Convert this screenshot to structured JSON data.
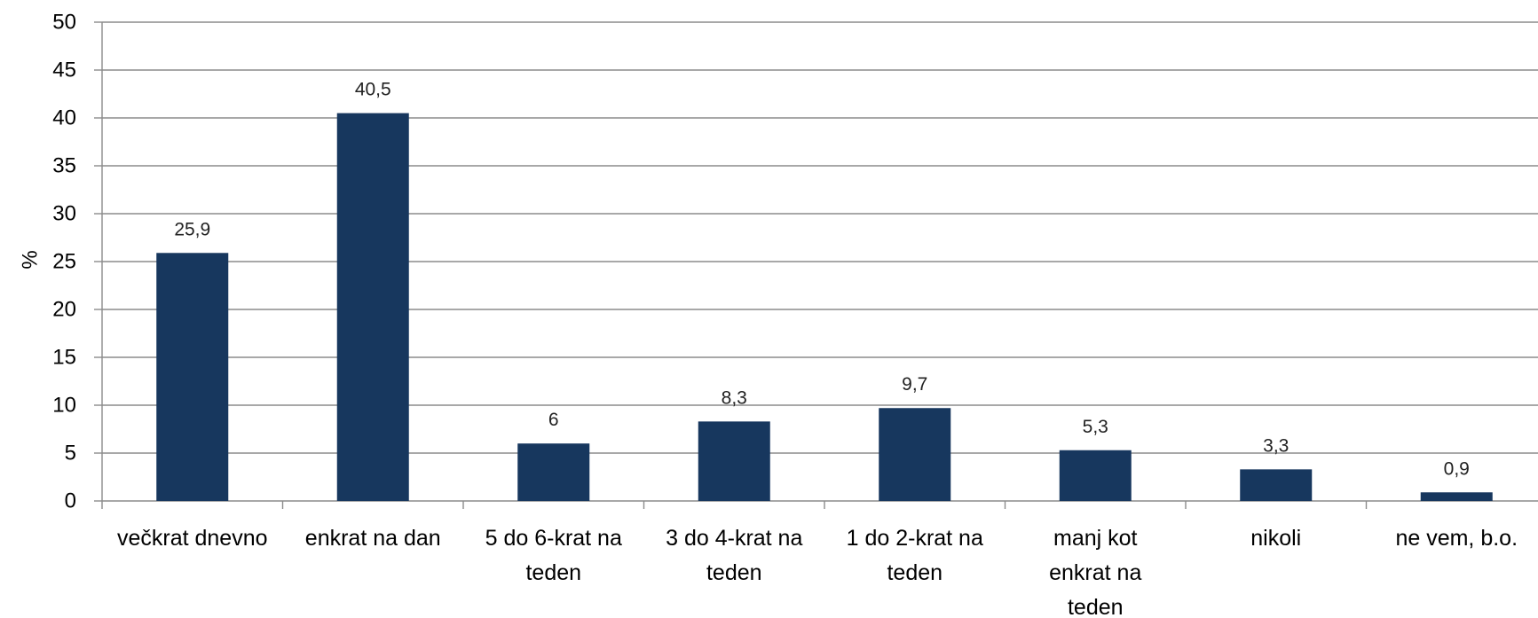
{
  "chart_data": {
    "type": "bar",
    "categories": [
      [
        "večkrat dnevno"
      ],
      [
        "enkrat na dan"
      ],
      [
        "5 do 6-krat na",
        "teden"
      ],
      [
        "3 do 4-krat na",
        "teden"
      ],
      [
        "1 do 2-krat na",
        "teden"
      ],
      [
        "manj kot",
        "enkrat na",
        "teden"
      ],
      [
        "nikoli"
      ],
      [
        "ne vem, b.o."
      ]
    ],
    "values": [
      25.9,
      40.5,
      6,
      8.3,
      9.7,
      5.3,
      3.3,
      0.9
    ],
    "value_labels": [
      "25,9",
      "40,5",
      "6",
      "8,3",
      "9,7",
      "5,3",
      "3,3",
      "0,9"
    ],
    "ylabel": "%",
    "ylim": [
      0,
      50
    ],
    "yticks": [
      0,
      5,
      10,
      15,
      20,
      25,
      30,
      35,
      40,
      45,
      50
    ],
    "grid": true,
    "legend": "none",
    "colors": {
      "bar": "#17375E",
      "grid": "#8C8C8C",
      "axis": "#8C8C8C"
    }
  }
}
